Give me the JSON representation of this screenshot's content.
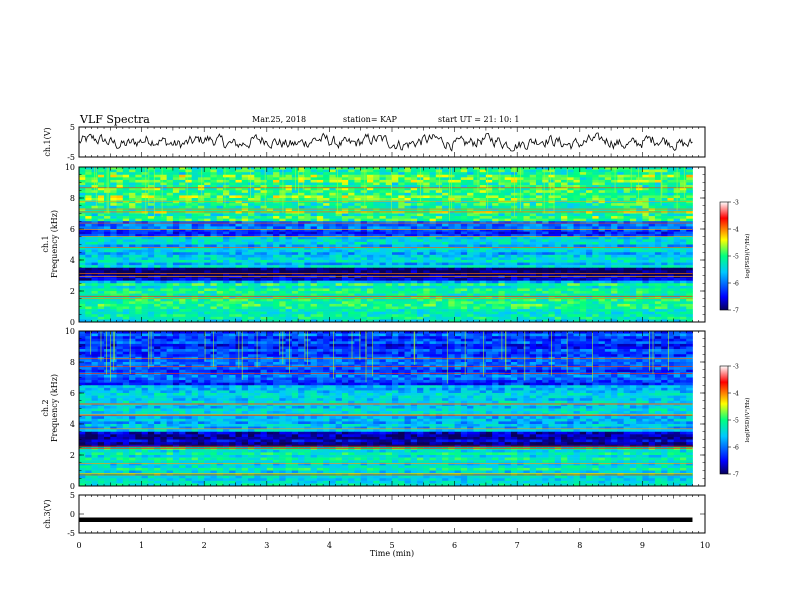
{
  "header": {
    "title": "VLF Spectra",
    "date": "Mar.25, 2018",
    "station": "station= KAP",
    "start_ut": "start  UT =   21: 10: 1"
  },
  "colors": {
    "waveform": "#000000",
    "axis": "#000000",
    "colormap": [
      "#08005a",
      "#0000ff",
      "#00c8ff",
      "#00ff80",
      "#ffff00",
      "#ff0000",
      "#ffffff"
    ]
  },
  "chart_data": [
    {
      "type": "line",
      "panel": "ch1-waveform",
      "ylabel": "ch.1(V)",
      "ylim": [
        -5,
        5
      ],
      "yticks": [
        "5",
        "-5"
      ],
      "xlim": [
        0,
        10
      ],
      "series": [
        {
          "x_range": [
            0,
            9.8
          ],
          "y_approx_range": [
            -3,
            3
          ],
          "appearance": "noisy oscillating signal"
        }
      ]
    },
    {
      "type": "heatmap",
      "panel": "ch1-spectrogram",
      "ylabel": "Frequency (kHz)",
      "channel_label": "ch.1",
      "ylim": [
        0,
        10
      ],
      "yticks": [
        "0",
        "2",
        "4",
        "6",
        "8",
        "10"
      ],
      "xlim": [
        0,
        10
      ],
      "colorbar": {
        "label": "log(PSD)(V²/Hz)",
        "range": [
          -7,
          -3
        ],
        "ticks": [
          "-3",
          "-4",
          "-5",
          "-6",
          "-7"
        ]
      },
      "dominant_bands": [
        {
          "f_range": [
            6.5,
            10
          ],
          "level": -5.0
        },
        {
          "f_range": [
            5.5,
            6.5
          ],
          "level": -6.2
        },
        {
          "f_range": [
            4.0,
            5.5
          ],
          "level": -5.6
        },
        {
          "f_range": [
            2.7,
            3.5
          ],
          "level": -6.8
        },
        {
          "f_range": [
            0,
            2.5
          ],
          "level": -5.2
        }
      ]
    },
    {
      "type": "heatmap",
      "panel": "ch2-spectrogram",
      "ylabel": "Frequency (kHz)",
      "channel_label": "ch.2",
      "ylim": [
        0,
        10
      ],
      "yticks": [
        "0",
        "2",
        "4",
        "6",
        "8",
        "10"
      ],
      "xlim": [
        0,
        10
      ],
      "colorbar": {
        "label": "log(PSD)(V²/Hz)",
        "range": [
          -7,
          -3
        ],
        "ticks": [
          "-3",
          "-4",
          "-5",
          "-6",
          "-7"
        ]
      },
      "dominant_bands": [
        {
          "f_range": [
            6.5,
            10
          ],
          "level": -6.2
        },
        {
          "f_range": [
            4.0,
            6.5
          ],
          "level": -5.6
        },
        {
          "f_range": [
            2.5,
            3.5
          ],
          "level": -6.8
        },
        {
          "f_range": [
            0,
            2.5
          ],
          "level": -5.3
        }
      ]
    },
    {
      "type": "line",
      "panel": "ch3-waveform",
      "ylabel": "ch.3(V)",
      "ylim": [
        -5,
        5
      ],
      "yticks": [
        "5",
        "0",
        "-5"
      ],
      "xlim": [
        0,
        10
      ],
      "xlabel": "Time  (min)",
      "xticks": [
        "0",
        "1",
        "2",
        "3",
        "4",
        "5",
        "6",
        "7",
        "8",
        "9",
        "10"
      ],
      "series": [
        {
          "x_range": [
            0,
            9.8
          ],
          "y_constant": -1.5,
          "appearance": "flat thick line"
        }
      ]
    }
  ]
}
